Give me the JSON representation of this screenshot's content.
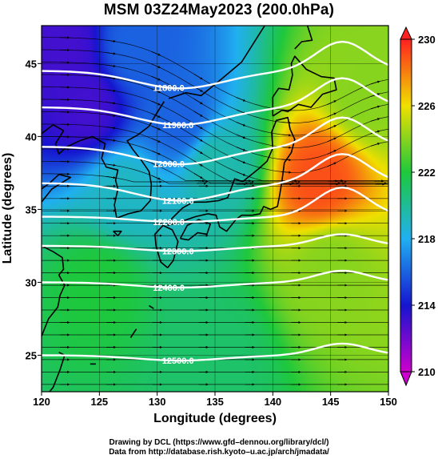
{
  "chart_data": {
    "type": "heatmap",
    "title": "MSM 03Z24May2023 (200.0hPa)",
    "xlabel": "Longitude (degrees)",
    "ylabel": "Latitude  (degrees)",
    "xlim": [
      120,
      150
    ],
    "ylim": [
      22.5,
      47.6
    ],
    "xticks": [
      120,
      125,
      130,
      135,
      140,
      145,
      150
    ],
    "yticks": [
      25,
      30,
      35,
      40,
      45
    ],
    "colorbar": {
      "min": 210,
      "max": 230,
      "ticks": [
        210,
        214,
        218,
        222,
        226,
        230
      ],
      "colors": [
        "#cc00cc",
        "#1515d0",
        "#20b0f0",
        "#1ec83c",
        "#f0e000",
        "#ff2020"
      ]
    },
    "temperature_samples": [
      {
        "lon": 122,
        "lat": 46,
        "value": 213
      },
      {
        "lon": 128,
        "lat": 46,
        "value": 216
      },
      {
        "lon": 124,
        "lat": 42,
        "value": 213
      },
      {
        "lon": 132,
        "lat": 41,
        "value": 216
      },
      {
        "lon": 127,
        "lat": 36,
        "value": 219
      },
      {
        "lon": 135,
        "lat": 38,
        "value": 219.5
      },
      {
        "lon": 144,
        "lat": 37,
        "value": 229
      },
      {
        "lon": 148,
        "lat": 43,
        "value": 224
      },
      {
        "lon": 145,
        "lat": 31,
        "value": 224
      },
      {
        "lon": 125,
        "lat": 30,
        "value": 222
      },
      {
        "lon": 135,
        "lat": 25,
        "value": 221
      }
    ],
    "contours": [
      {
        "label": "11800.0",
        "lat": 44.5
      },
      {
        "label": "11900.0",
        "lat": 42.0
      },
      {
        "label": "12000.0",
        "lat": 39.3
      },
      {
        "label": "12100.0",
        "lat": 36.8
      },
      {
        "label": "12200.0",
        "lat": 34.5
      },
      {
        "label": "12300.0",
        "lat": 32.5
      },
      {
        "label": "12400.0",
        "lat": 30.0
      },
      {
        "label": "12500.0",
        "lat": 25.0
      }
    ]
  },
  "credits": {
    "line1": "Drawing by DCL (https://www.gfd–dennou.org/library/dcl/)",
    "line2": "Data from http://database.rish.kyoto–u.ac.jp/arch/jmadata/"
  }
}
